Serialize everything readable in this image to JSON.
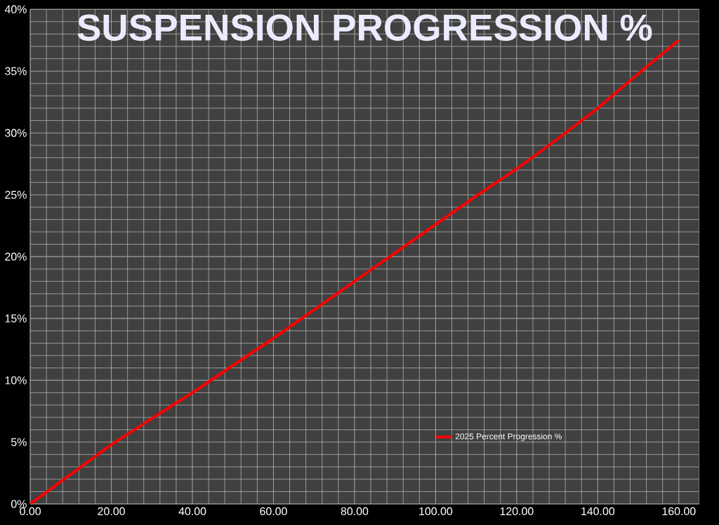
{
  "chart_data": {
    "type": "line",
    "title": "SUSPENSION PROGRESSION %",
    "x": [
      0,
      10,
      20,
      30,
      40,
      50,
      60,
      70,
      80,
      90,
      100,
      110,
      120,
      130,
      140,
      150,
      160
    ],
    "series": [
      {
        "name": "2025 Percent Progression %",
        "color": "#ff0000",
        "values": [
          0,
          2.4,
          4.8,
          6.9,
          9.0,
          11.2,
          13.4,
          15.7,
          18.0,
          20.3,
          22.6,
          24.9,
          27.1,
          29.5,
          32.0,
          34.8,
          37.5
        ]
      }
    ],
    "xlim": [
      0,
      165
    ],
    "xticks": [
      {
        "value": 0,
        "label": "0.00"
      },
      {
        "value": 20,
        "label": "20.00"
      },
      {
        "value": 40,
        "label": "40.00"
      },
      {
        "value": 60,
        "label": "60.00"
      },
      {
        "value": 80,
        "label": "80.00"
      },
      {
        "value": 100,
        "label": "100.00"
      },
      {
        "value": 120,
        "label": "120.00"
      },
      {
        "value": 140,
        "label": "140.00"
      },
      {
        "value": 160,
        "label": "160.00"
      }
    ],
    "ylim": [
      0,
      40
    ],
    "yticks": [
      {
        "value": 0,
        "label": "0%"
      },
      {
        "value": 5,
        "label": "5%"
      },
      {
        "value": 10,
        "label": "10%"
      },
      {
        "value": 15,
        "label": "15%"
      },
      {
        "value": 20,
        "label": "20%"
      },
      {
        "value": 25,
        "label": "25%"
      },
      {
        "value": 30,
        "label": "30%"
      },
      {
        "value": 35,
        "label": "35%"
      },
      {
        "value": 40,
        "label": "40%"
      }
    ],
    "grid": true,
    "legend": "bottom right",
    "marker": "none",
    "line_style": "solid"
  }
}
